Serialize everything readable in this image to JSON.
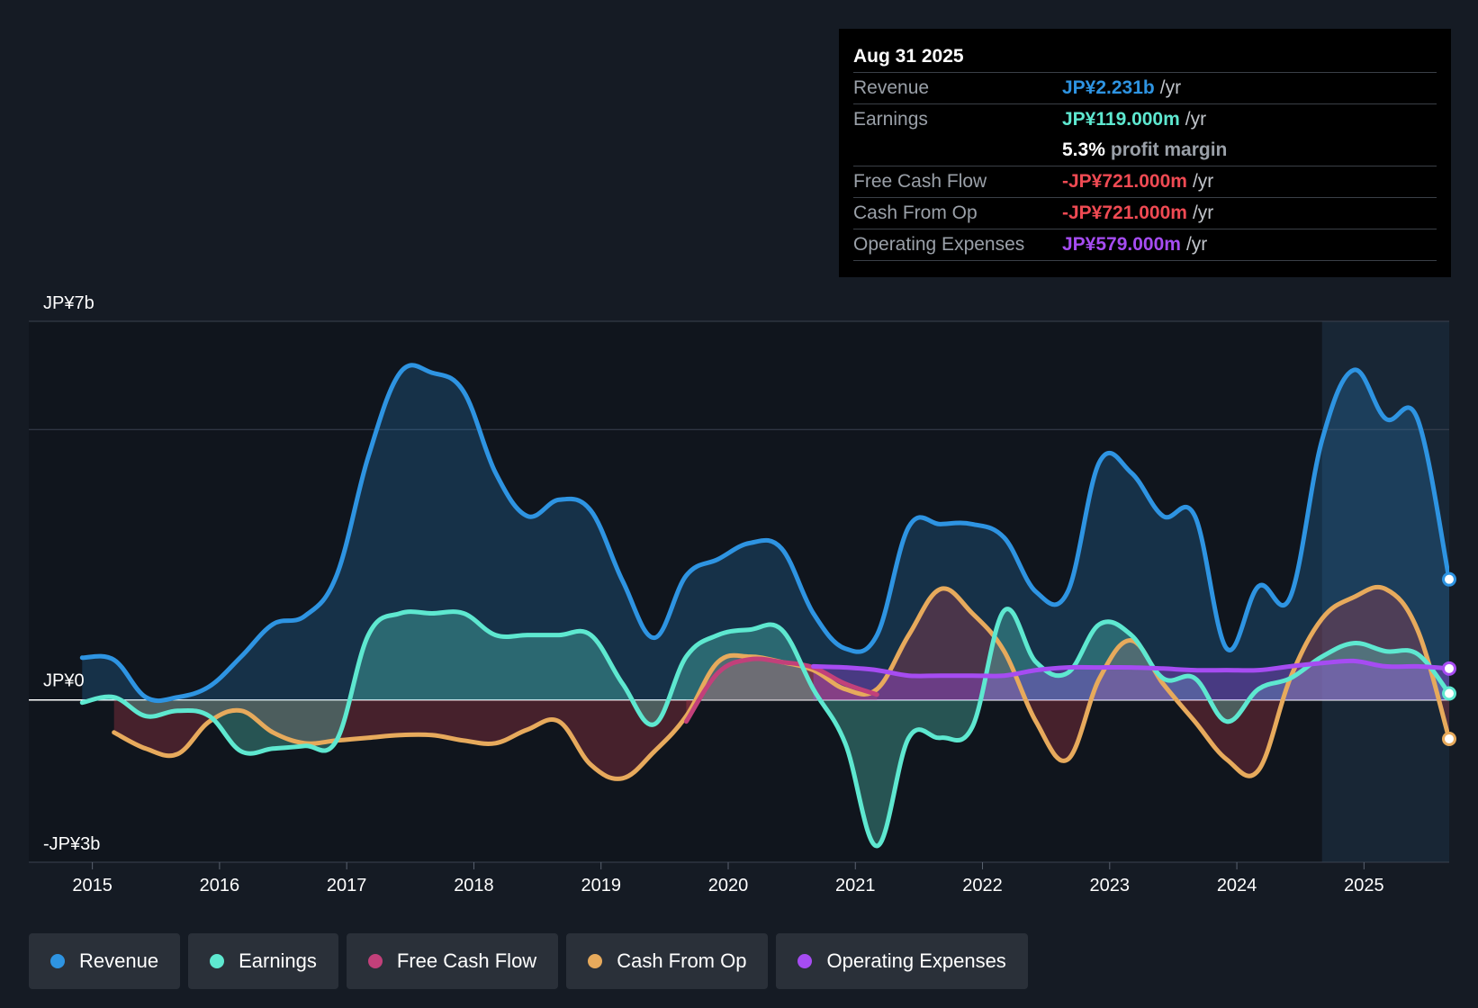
{
  "tooltip": {
    "date": "Aug 31 2025",
    "rows": [
      {
        "label": "Revenue",
        "value": "JP¥2.231b",
        "unit": "/yr",
        "color": "#2e94e2"
      },
      {
        "label": "Earnings",
        "value": "JP¥119.000m",
        "unit": "/yr",
        "color": "#5ee8d0"
      },
      {
        "label": "",
        "value": "5.3%",
        "unit": "profit margin"
      },
      {
        "label": "Free Cash Flow",
        "value": "-JP¥721.000m",
        "unit": "/yr",
        "color": "#ef4a53"
      },
      {
        "label": "Cash From Op",
        "value": "-JP¥721.000m",
        "unit": "/yr",
        "color": "#ef4a53"
      },
      {
        "label": "Operating Expenses",
        "value": "JP¥579.000m",
        "unit": "/yr",
        "color": "#a64cf2"
      }
    ]
  },
  "legend": [
    {
      "label": "Revenue",
      "color": "#2e94e2"
    },
    {
      "label": "Earnings",
      "color": "#5ee8d0"
    },
    {
      "label": "Free Cash Flow",
      "color": "#c2407a"
    },
    {
      "label": "Cash From Op",
      "color": "#e7aa5c"
    },
    {
      "label": "Operating Expenses",
      "color": "#a64cf2"
    }
  ],
  "chart_data": {
    "type": "line",
    "title": "",
    "xlabel": "",
    "ylabel": "",
    "y_unit": "JP¥ billions",
    "ylim": [
      -3,
      7
    ],
    "xlim": [
      2014.5,
      2025.67
    ],
    "y_tick_labels": [
      {
        "value": 7,
        "label": "JP¥7b"
      },
      {
        "value": 0,
        "label": "JP¥0"
      },
      {
        "value": -3,
        "label": "-JP¥3b"
      }
    ],
    "gridlines": [
      7,
      5,
      0
    ],
    "x_tick_labels": [
      {
        "value": 2015,
        "label": "2015"
      },
      {
        "value": 2016,
        "label": "2016"
      },
      {
        "value": 2017,
        "label": "2017"
      },
      {
        "value": 2018,
        "label": "2018"
      },
      {
        "value": 2019,
        "label": "2019"
      },
      {
        "value": 2020,
        "label": "2020"
      },
      {
        "value": 2021,
        "label": "2021"
      },
      {
        "value": 2022,
        "label": "2022"
      },
      {
        "value": 2023,
        "label": "2023"
      },
      {
        "value": 2024,
        "label": "2024"
      },
      {
        "value": 2025,
        "label": "2025"
      }
    ],
    "highlight_from_x": 2024.67,
    "series": [
      {
        "name": "Revenue",
        "color": "#2e94e2",
        "x": [
          2014.92,
          2015.17,
          2015.42,
          2015.67,
          2015.92,
          2016.17,
          2016.42,
          2016.67,
          2016.92,
          2017.17,
          2017.42,
          2017.67,
          2017.92,
          2018.17,
          2018.42,
          2018.67,
          2018.92,
          2019.17,
          2019.42,
          2019.67,
          2019.92,
          2020.17,
          2020.42,
          2020.67,
          2020.92,
          2021.17,
          2021.42,
          2021.67,
          2021.92,
          2022.17,
          2022.42,
          2022.67,
          2022.92,
          2023.17,
          2023.42,
          2023.67,
          2023.92,
          2024.17,
          2024.42,
          2024.67,
          2024.92,
          2025.17,
          2025.42,
          2025.67
        ],
        "values": [
          0.78,
          0.74,
          0.05,
          0.05,
          0.25,
          0.8,
          1.4,
          1.55,
          2.3,
          4.5,
          6.05,
          6.05,
          5.7,
          4.2,
          3.4,
          3.7,
          3.5,
          2.2,
          1.15,
          2.3,
          2.6,
          2.9,
          2.8,
          1.6,
          0.95,
          1.2,
          3.2,
          3.25,
          3.25,
          3.0,
          2.0,
          2.0,
          4.4,
          4.2,
          3.4,
          3.4,
          0.95,
          2.1,
          1.9,
          4.8,
          6.1,
          5.2,
          5.2,
          2.23
        ]
      },
      {
        "name": "Earnings",
        "color": "#5ee8d0",
        "x": [
          2014.92,
          2015.17,
          2015.42,
          2015.67,
          2015.92,
          2016.17,
          2016.42,
          2016.67,
          2016.92,
          2017.17,
          2017.42,
          2017.67,
          2017.92,
          2018.17,
          2018.42,
          2018.67,
          2018.92,
          2019.17,
          2019.42,
          2019.67,
          2019.92,
          2020.17,
          2020.42,
          2020.67,
          2020.92,
          2021.17,
          2021.42,
          2021.67,
          2021.92,
          2022.17,
          2022.42,
          2022.67,
          2022.92,
          2023.17,
          2023.42,
          2023.67,
          2023.92,
          2024.17,
          2024.42,
          2024.67,
          2024.92,
          2025.17,
          2025.42,
          2025.67
        ],
        "values": [
          -0.05,
          0.05,
          -0.3,
          -0.2,
          -0.3,
          -0.95,
          -0.9,
          -0.85,
          -0.75,
          1.2,
          1.6,
          1.6,
          1.6,
          1.2,
          1.2,
          1.2,
          1.2,
          0.3,
          -0.45,
          0.8,
          1.2,
          1.3,
          1.3,
          0.2,
          -0.8,
          -2.7,
          -0.7,
          -0.7,
          -0.5,
          1.65,
          0.7,
          0.5,
          1.4,
          1.2,
          0.4,
          0.4,
          -0.4,
          0.2,
          0.4,
          0.8,
          1.05,
          0.9,
          0.85,
          0.12
        ]
      },
      {
        "name": "Free Cash Flow",
        "color": "#c2407a",
        "x": [
          2019.67,
          2019.92,
          2020.17,
          2020.42,
          2020.67,
          2020.92,
          2021.17
        ],
        "values": [
          -0.4,
          0.5,
          0.75,
          0.7,
          0.6,
          0.3,
          0.1
        ]
      },
      {
        "name": "Cash From Op",
        "color": "#e7aa5c",
        "x": [
          2015.17,
          2015.42,
          2015.67,
          2015.92,
          2016.17,
          2016.42,
          2016.67,
          2016.92,
          2017.17,
          2017.42,
          2017.67,
          2017.92,
          2018.17,
          2018.42,
          2018.67,
          2018.92,
          2019.17,
          2019.42,
          2019.67,
          2019.92,
          2020.17,
          2020.42,
          2020.67,
          2020.92,
          2021.17,
          2021.42,
          2021.67,
          2021.92,
          2022.17,
          2022.42,
          2022.67,
          2022.92,
          2023.17,
          2023.42,
          2023.67,
          2023.92,
          2024.17,
          2024.42,
          2024.67,
          2024.92,
          2025.17,
          2025.42,
          2025.67
        ],
        "values": [
          -0.6,
          -0.9,
          -1.0,
          -0.4,
          -0.2,
          -0.6,
          -0.8,
          -0.75,
          -0.7,
          -0.65,
          -0.65,
          -0.75,
          -0.8,
          -0.55,
          -0.4,
          -1.2,
          -1.45,
          -0.95,
          -0.3,
          0.7,
          0.8,
          0.7,
          0.55,
          0.2,
          0.2,
          1.2,
          2.05,
          1.6,
          0.9,
          -0.4,
          -1.1,
          0.4,
          1.1,
          0.3,
          -0.4,
          -1.1,
          -1.3,
          0.4,
          1.5,
          1.9,
          2.05,
          1.3,
          -0.72
        ]
      },
      {
        "name": "Operating Expenses",
        "color": "#a64cf2",
        "x": [
          2020.67,
          2020.92,
          2021.17,
          2021.42,
          2021.67,
          2021.92,
          2022.17,
          2022.42,
          2022.67,
          2022.92,
          2023.17,
          2023.42,
          2023.67,
          2023.92,
          2024.17,
          2024.42,
          2024.67,
          2024.92,
          2025.17,
          2025.42,
          2025.67
        ],
        "values": [
          0.62,
          0.6,
          0.55,
          0.45,
          0.45,
          0.45,
          0.45,
          0.55,
          0.6,
          0.6,
          0.6,
          0.58,
          0.55,
          0.55,
          0.55,
          0.62,
          0.68,
          0.72,
          0.62,
          0.62,
          0.58
        ]
      }
    ]
  }
}
